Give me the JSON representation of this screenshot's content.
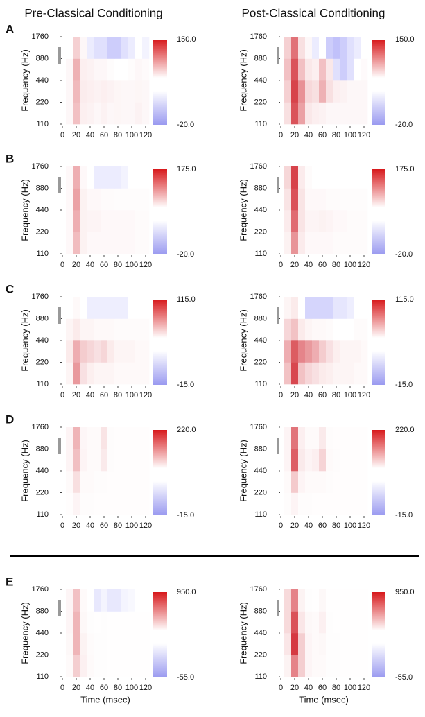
{
  "column_titles": [
    "Pre-Classical Conditioning",
    "Post-Classical Conditioning"
  ],
  "panel_labels": [
    "A",
    "B",
    "C",
    "D",
    "E"
  ],
  "chart_data": [
    {
      "type": "heatmap",
      "ylabel": "Frequency (Hz)",
      "log_y": true,
      "xlim": [
        0,
        125
      ],
      "xticks": [
        0,
        20,
        40,
        60,
        80,
        100,
        120
      ],
      "ylim": [
        110,
        1760
      ],
      "yticks": [
        110,
        220,
        440,
        880,
        1760
      ],
      "x_bins": [
        5,
        15,
        25,
        35,
        45,
        55,
        65,
        75,
        85,
        95,
        105,
        115,
        125
      ],
      "y_bins": [
        110,
        220,
        440,
        880,
        1760
      ],
      "values": [
        [
          5,
          40,
          10,
          8,
          5,
          8,
          5,
          6,
          5,
          5,
          8,
          5
        ],
        [
          5,
          45,
          12,
          10,
          8,
          10,
          8,
          6,
          5,
          5,
          6,
          5
        ],
        [
          5,
          50,
          10,
          8,
          5,
          5,
          2,
          0,
          0,
          2,
          5,
          3
        ],
        [
          0,
          30,
          5,
          -3,
          -5,
          -5,
          -8,
          -8,
          -5,
          -3,
          0,
          -2
        ]
      ],
      "colorbar": {
        "lim": [
          -20,
          150
        ],
        "ticks": [
          {
            "value": -20,
            "label": "-20.0"
          },
          {
            "value": 150,
            "label": "150.0"
          }
        ]
      }
    },
    {
      "type": "heatmap",
      "ylabel": "Frequency (Hz)",
      "log_y": true,
      "xlim": [
        0,
        125
      ],
      "xticks": [
        0,
        20,
        40,
        60,
        80,
        100,
        120
      ],
      "ylim": [
        110,
        1760
      ],
      "yticks": [
        110,
        220,
        440,
        880,
        1760
      ],
      "x_bins": [
        5,
        15,
        25,
        35,
        45,
        55,
        65,
        75,
        85,
        95,
        105,
        115,
        125
      ],
      "y_bins": [
        110,
        220,
        440,
        880,
        1760
      ],
      "values": [
        [
          20,
          110,
          60,
          15,
          10,
          8,
          5,
          5,
          5,
          5,
          5,
          5
        ],
        [
          30,
          120,
          70,
          25,
          20,
          50,
          20,
          10,
          8,
          5,
          5,
          5
        ],
        [
          40,
          110,
          40,
          15,
          10,
          40,
          15,
          -5,
          -8,
          -5,
          0,
          3
        ],
        [
          30,
          90,
          20,
          5,
          -3,
          0,
          -8,
          -10,
          -8,
          -5,
          -3,
          0
        ]
      ],
      "colorbar": {
        "lim": [
          -20,
          150
        ],
        "ticks": [
          {
            "value": -20,
            "label": "-20.0"
          },
          {
            "value": 150,
            "label": "150.0"
          }
        ]
      }
    },
    {
      "type": "heatmap",
      "ylabel": "Frequency (Hz)",
      "log_y": true,
      "xlim": [
        0,
        125
      ],
      "xticks": [
        0,
        20,
        40,
        60,
        80,
        100,
        120
      ],
      "ylim": [
        110,
        1760
      ],
      "yticks": [
        110,
        220,
        440,
        880,
        1760
      ],
      "x_bins": [
        5,
        15,
        25,
        35,
        45,
        55,
        65,
        75,
        85,
        95,
        105,
        115,
        125
      ],
      "y_bins": [
        110,
        220,
        440,
        880,
        1760
      ],
      "values": [
        [
          5,
          50,
          10,
          5,
          5,
          5,
          5,
          5,
          5,
          5,
          3,
          3
        ],
        [
          5,
          60,
          10,
          8,
          8,
          5,
          5,
          5,
          5,
          5,
          3,
          3
        ],
        [
          5,
          70,
          10,
          5,
          5,
          3,
          3,
          2,
          2,
          2,
          2,
          2
        ],
        [
          5,
          60,
          5,
          0,
          -3,
          -3,
          -3,
          -3,
          -2,
          0,
          0,
          0
        ]
      ],
      "colorbar": {
        "lim": [
          -20,
          175
        ],
        "ticks": [
          {
            "value": -20,
            "label": "-20.0"
          },
          {
            "value": 175,
            "label": "175.0"
          }
        ]
      }
    },
    {
      "type": "heatmap",
      "ylabel": "Frequency (Hz)",
      "log_y": true,
      "xlim": [
        0,
        125
      ],
      "xticks": [
        0,
        20,
        40,
        60,
        80,
        100,
        120
      ],
      "ylim": [
        110,
        1760
      ],
      "yticks": [
        110,
        220,
        440,
        880,
        1760
      ],
      "x_bins": [
        5,
        15,
        25,
        35,
        45,
        55,
        65,
        75,
        85,
        95,
        105,
        115,
        125
      ],
      "y_bins": [
        110,
        220,
        440,
        880,
        1760
      ],
      "values": [
        [
          10,
          80,
          15,
          5,
          5,
          5,
          5,
          3,
          3,
          3,
          3,
          3
        ],
        [
          15,
          110,
          20,
          8,
          8,
          10,
          8,
          5,
          5,
          3,
          3,
          3
        ],
        [
          20,
          130,
          20,
          5,
          5,
          5,
          3,
          3,
          2,
          2,
          2,
          2
        ],
        [
          30,
          140,
          15,
          3,
          0,
          0,
          0,
          0,
          0,
          0,
          0,
          0
        ]
      ],
      "colorbar": {
        "lim": [
          -20,
          175
        ],
        "ticks": [
          {
            "value": -20,
            "label": "-20.0"
          },
          {
            "value": 175,
            "label": "175.0"
          }
        ]
      }
    },
    {
      "type": "heatmap",
      "ylabel": "Frequency (Hz)",
      "log_y": true,
      "xlim": [
        0,
        125
      ],
      "xticks": [
        0,
        20,
        40,
        60,
        80,
        100,
        120
      ],
      "ylim": [
        110,
        1760
      ],
      "yticks": [
        110,
        220,
        440,
        880,
        1760
      ],
      "x_bins": [
        5,
        15,
        25,
        35,
        45,
        55,
        65,
        75,
        85,
        95,
        105,
        115,
        125
      ],
      "y_bins": [
        110,
        220,
        440,
        880,
        1760
      ],
      "values": [
        [
          5,
          50,
          15,
          8,
          5,
          5,
          5,
          3,
          3,
          3,
          3,
          3
        ],
        [
          10,
          40,
          25,
          20,
          15,
          20,
          10,
          5,
          5,
          5,
          3,
          3
        ],
        [
          5,
          10,
          5,
          5,
          3,
          3,
          3,
          2,
          2,
          2,
          2,
          2
        ],
        [
          0,
          3,
          0,
          -2,
          -2,
          -2,
          -2,
          -2,
          -2,
          0,
          0,
          0
        ]
      ],
      "colorbar": {
        "lim": [
          -15,
          115
        ],
        "ticks": [
          {
            "value": -15,
            "label": "-15.0"
          },
          {
            "value": 115,
            "label": "115.0"
          }
        ]
      }
    },
    {
      "type": "heatmap",
      "ylabel": "Frequency (Hz)",
      "log_y": true,
      "xlim": [
        0,
        125
      ],
      "xticks": [
        0,
        20,
        40,
        60,
        80,
        100,
        120
      ],
      "ylim": [
        110,
        1760
      ],
      "yticks": [
        110,
        220,
        440,
        880,
        1760
      ],
      "x_bins": [
        5,
        15,
        25,
        35,
        45,
        55,
        65,
        75,
        85,
        95,
        105,
        115,
        125
      ],
      "y_bins": [
        110,
        220,
        440,
        880,
        1760
      ],
      "values": [
        [
          30,
          90,
          30,
          20,
          15,
          10,
          8,
          5,
          5,
          5,
          3,
          3
        ],
        [
          40,
          80,
          60,
          50,
          40,
          25,
          15,
          8,
          5,
          5,
          5,
          3
        ],
        [
          20,
          30,
          10,
          5,
          3,
          3,
          2,
          0,
          0,
          0,
          2,
          2
        ],
        [
          5,
          10,
          0,
          -5,
          -5,
          -5,
          -5,
          -3,
          -3,
          -2,
          0,
          0
        ]
      ],
      "colorbar": {
        "lim": [
          -15,
          115
        ],
        "ticks": [
          {
            "value": -15,
            "label": "-15.0"
          },
          {
            "value": 115,
            "label": "115.0"
          }
        ]
      }
    },
    {
      "type": "heatmap",
      "ylabel": "Frequency (Hz)",
      "log_y": true,
      "xlim": [
        0,
        125
      ],
      "xticks": [
        0,
        20,
        40,
        60,
        80,
        100,
        120
      ],
      "ylim": [
        110,
        1760
      ],
      "yticks": [
        110,
        220,
        440,
        880,
        1760
      ],
      "x_bins": [
        5,
        15,
        25,
        35,
        45,
        55,
        65,
        75,
        85,
        95,
        105,
        115,
        125
      ],
      "y_bins": [
        110,
        220,
        440,
        880,
        1760
      ],
      "values": [
        [
          2,
          10,
          3,
          3,
          2,
          2,
          2,
          2,
          2,
          2,
          2,
          2
        ],
        [
          5,
          30,
          5,
          5,
          3,
          3,
          2,
          2,
          2,
          2,
          2,
          2
        ],
        [
          10,
          60,
          10,
          5,
          5,
          20,
          3,
          2,
          2,
          2,
          2,
          2
        ],
        [
          10,
          70,
          8,
          5,
          5,
          25,
          3,
          2,
          2,
          2,
          2,
          2
        ]
      ],
      "colorbar": {
        "lim": [
          -15,
          220
        ],
        "ticks": [
          {
            "value": -15,
            "label": "-15.0"
          },
          {
            "value": 220,
            "label": "220.0"
          }
        ]
      }
    },
    {
      "type": "heatmap",
      "ylabel": "Frequency (Hz)",
      "log_y": true,
      "xlim": [
        0,
        125
      ],
      "xticks": [
        0,
        20,
        40,
        60,
        80,
        100,
        120
      ],
      "ylim": [
        110,
        1760
      ],
      "yticks": [
        110,
        220,
        440,
        880,
        1760
      ],
      "x_bins": [
        5,
        15,
        25,
        35,
        45,
        55,
        65,
        75,
        85,
        95,
        105,
        115,
        125
      ],
      "y_bins": [
        110,
        220,
        440,
        880,
        1760
      ],
      "values": [
        [
          3,
          10,
          3,
          3,
          2,
          2,
          2,
          2,
          2,
          2,
          2,
          2
        ],
        [
          5,
          50,
          10,
          5,
          5,
          5,
          3,
          2,
          2,
          2,
          2,
          2
        ],
        [
          10,
          150,
          20,
          10,
          15,
          40,
          5,
          3,
          2,
          2,
          2,
          2
        ],
        [
          10,
          130,
          15,
          5,
          5,
          20,
          3,
          2,
          2,
          2,
          2,
          2
        ]
      ],
      "colorbar": {
        "lim": [
          -15,
          220
        ],
        "ticks": [
          {
            "value": -15,
            "label": "-15.0"
          },
          {
            "value": 220,
            "label": "220.0"
          }
        ]
      }
    },
    {
      "type": "heatmap",
      "ylabel": "Frequency (Hz)",
      "xlabel": "Time (msec)",
      "log_y": true,
      "xlim": [
        0,
        125
      ],
      "xticks": [
        0,
        20,
        40,
        60,
        80,
        100,
        120
      ],
      "ylim": [
        110,
        1760
      ],
      "yticks": [
        110,
        220,
        440,
        880,
        1760
      ],
      "x_bins": [
        5,
        15,
        25,
        35,
        45,
        55,
        65,
        75,
        85,
        95,
        105,
        115,
        125
      ],
      "y_bins": [
        110,
        220,
        440,
        880,
        1760
      ],
      "values": [
        [
          20,
          200,
          60,
          20,
          10,
          10,
          5,
          5,
          5,
          5,
          5,
          5
        ],
        [
          30,
          300,
          50,
          15,
          10,
          10,
          5,
          5,
          5,
          5,
          5,
          5
        ],
        [
          40,
          300,
          30,
          10,
          5,
          10,
          3,
          3,
          3,
          3,
          3,
          3
        ],
        [
          40,
          250,
          20,
          0,
          -10,
          -5,
          -10,
          -10,
          -5,
          -3,
          0,
          0
        ]
      ],
      "colorbar": {
        "lim": [
          -55,
          950
        ],
        "ticks": [
          {
            "value": -55,
            "label": "-55.0"
          },
          {
            "value": 950,
            "label": "950.0"
          }
        ]
      }
    },
    {
      "type": "heatmap",
      "ylabel": "Frequency (Hz)",
      "xlabel": "Time (msec)",
      "log_y": true,
      "xlim": [
        0,
        125
      ],
      "xticks": [
        0,
        20,
        40,
        60,
        80,
        100,
        120
      ],
      "ylim": [
        110,
        1760
      ],
      "yticks": [
        110,
        220,
        440,
        880,
        1760
      ],
      "x_bins": [
        5,
        15,
        25,
        35,
        45,
        55,
        65,
        75,
        85,
        95,
        105,
        115,
        125
      ],
      "y_bins": [
        110,
        220,
        440,
        880,
        1760
      ],
      "values": [
        [
          50,
          500,
          200,
          40,
          20,
          20,
          10,
          10,
          5,
          5,
          5,
          5
        ],
        [
          100,
          800,
          200,
          40,
          20,
          30,
          10,
          10,
          5,
          5,
          5,
          5
        ],
        [
          150,
          700,
          100,
          30,
          20,
          60,
          10,
          5,
          5,
          5,
          5,
          5
        ],
        [
          150,
          500,
          50,
          10,
          5,
          30,
          5,
          3,
          3,
          3,
          3,
          3
        ]
      ],
      "colorbar": {
        "lim": [
          -55,
          950
        ],
        "ticks": [
          {
            "value": -55,
            "label": "-55.0"
          },
          {
            "value": 950,
            "label": "950.0"
          }
        ]
      }
    }
  ]
}
